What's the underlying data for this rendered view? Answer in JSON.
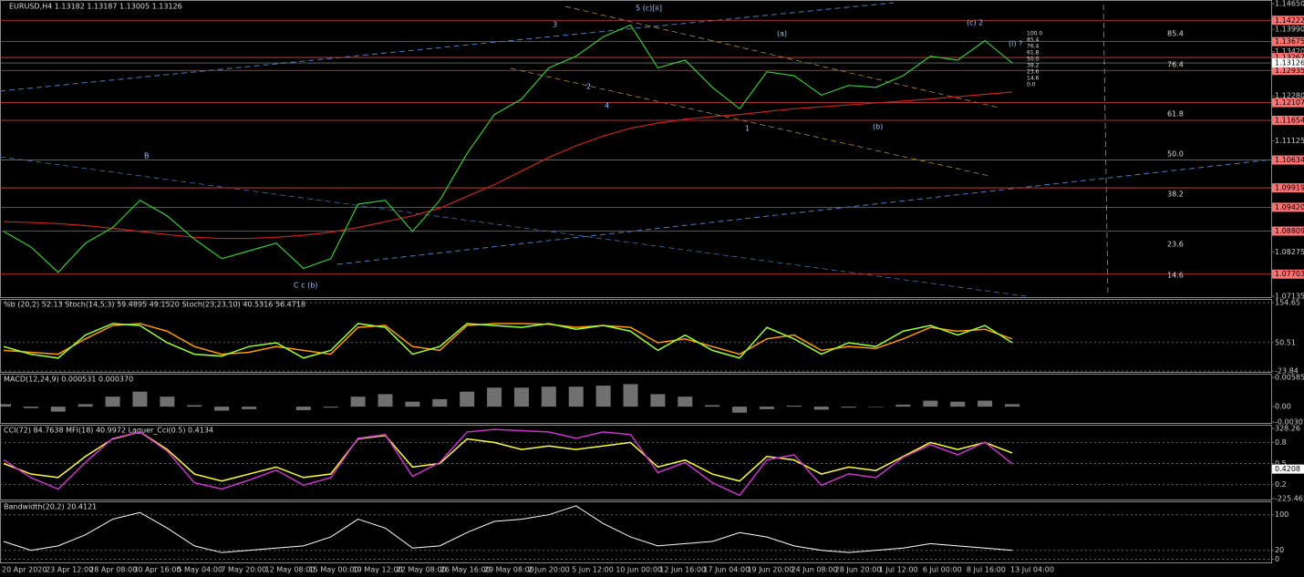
{
  "header": "EURUSD,H4  1.13182 1.13187 1.13005 1.13126",
  "main": {
    "ylim": [
      1.07135,
      1.1465
    ],
    "yticks": [
      {
        "value": 1.1465,
        "label": "1.14650"
      },
      {
        "value": 1.1399,
        "label": "1.13990"
      },
      {
        "value": 1.1342,
        "label": "1.13420"
      },
      {
        "value": 1.1228,
        "label": "1.12280"
      },
      {
        "value": 1.11125,
        "label": "1.11125"
      },
      {
        "value": 1.08275,
        "label": "1.08275"
      },
      {
        "value": 1.07135,
        "label": "1.07135"
      }
    ],
    "levels": [
      {
        "value": 1.14222,
        "label": "1.14222"
      },
      {
        "value": 1.13675,
        "label": "1.13675"
      },
      {
        "value": 1.13267,
        "label": "1.13267"
      },
      {
        "value": 1.12935,
        "label": "1.12935"
      },
      {
        "value": 1.12107,
        "label": "1.12107"
      },
      {
        "value": 1.11654,
        "label": "1.11654"
      },
      {
        "value": 1.10634,
        "label": "1.10634"
      },
      {
        "value": 1.09919,
        "label": "1.09919"
      },
      {
        "value": 1.0942,
        "label": "1.09420"
      },
      {
        "value": 1.08809,
        "label": "1.08809"
      },
      {
        "value": 1.07703,
        "label": "1.07703"
      }
    ],
    "current": {
      "value": 1.13126,
      "label": "1.13126"
    },
    "price": {
      "color": "#33cc33",
      "values": [
        1.088,
        1.084,
        1.0775,
        1.085,
        1.089,
        1.096,
        1.092,
        1.086,
        1.081,
        1.083,
        1.085,
        1.0785,
        1.081,
        1.095,
        1.096,
        1.088,
        1.096,
        1.108,
        1.118,
        1.122,
        1.13,
        1.133,
        1.138,
        1.141,
        1.13,
        1.132,
        1.125,
        1.1195,
        1.129,
        1.128,
        1.123,
        1.1255,
        1.125,
        1.128,
        1.133,
        1.132,
        1.137,
        1.13126
      ]
    },
    "ma": {
      "color": "#cc2222",
      "values": [
        1.0905,
        1.0903,
        1.09,
        1.0895,
        1.0888,
        1.088,
        1.0872,
        1.0865,
        1.0862,
        1.0862,
        1.0865,
        1.087,
        1.0878,
        1.089,
        1.0905,
        1.092,
        1.094,
        1.097,
        1.1,
        1.1035,
        1.107,
        1.11,
        1.1125,
        1.1145,
        1.1158,
        1.1168,
        1.1175,
        1.118,
        1.1188,
        1.1195,
        1.12,
        1.1205,
        1.121,
        1.1215,
        1.122,
        1.1226,
        1.1232,
        1.1238
      ]
    },
    "fib_small": [
      "100.0",
      "85.4",
      "76.4",
      "61.8",
      "50.0",
      "38.2",
      "23.6",
      "14.6",
      "0.0"
    ],
    "fib_big": [
      "85.4",
      "76.4",
      "61.8",
      "50.0",
      "38.2",
      "23.6",
      "14.6"
    ],
    "waves": [
      "5 (c)[ii]",
      "3",
      "4",
      "B",
      "C c (b)",
      "(a)",
      "(b)",
      "(c) 2",
      "(i) ?",
      "1",
      "2"
    ]
  },
  "stoch": {
    "header": "%b (20,2) 52.13  Stoch(14,5,3) 59.4895 49.1520  Stoch(23,23,10) 40.5316 56.4718",
    "ylim": [
      -23.84,
      154.65
    ],
    "yticks": [
      154.65,
      50.51,
      -23.84
    ],
    "series": [
      {
        "color": "#ff9900",
        "values": [
          30,
          25,
          20,
          60,
          95,
          100,
          80,
          40,
          20,
          25,
          40,
          30,
          20,
          90,
          95,
          40,
          30,
          95,
          100,
          100,
          98,
          90,
          95,
          90,
          50,
          60,
          40,
          20,
          60,
          70,
          30,
          40,
          35,
          60,
          90,
          80,
          85,
          60
        ]
      },
      {
        "color": "#99ff33",
        "values": [
          40,
          20,
          10,
          70,
          100,
          95,
          50,
          20,
          15,
          40,
          50,
          10,
          30,
          100,
          90,
          20,
          40,
          100,
          95,
          90,
          100,
          85,
          95,
          80,
          30,
          70,
          30,
          10,
          90,
          60,
          20,
          50,
          40,
          80,
          95,
          70,
          95,
          50
        ]
      }
    ]
  },
  "macd": {
    "header": "MACD(12,24,9) 0.000531 0.000370",
    "ylim": [
      -0.003074,
      0.005853
    ],
    "yticks": [
      0.005853,
      {
        "value": 0,
        "label": "0.00"
      },
      -0.003074
    ],
    "values": [
      0.0005,
      -0.0003,
      -0.001,
      0.0005,
      0.002,
      0.003,
      0.002,
      0.0003,
      -0.0008,
      -0.0005,
      0,
      -0.0007,
      -0.0002,
      0.002,
      0.0025,
      0.001,
      0.0015,
      0.003,
      0.0038,
      0.0038,
      0.004,
      0.004,
      0.0042,
      0.0045,
      0.0025,
      0.002,
      0.0003,
      -0.0012,
      -0.0005,
      0.0002,
      -0.0006,
      -0.0002,
      -0.0001,
      0.0004,
      0.0012,
      0.001,
      0.0012,
      0.0005
    ]
  },
  "cci": {
    "header": "CCI(72) 84.7638  MFI(18) 40.9972  Laguer_Cci(0.5) 0.4134",
    "ylim": [
      -225.4621,
      328.26
    ],
    "yticks": [
      328.26,
      -225.4621
    ],
    "y2lim": [
      0,
      1
    ],
    "y2ticks": [
      0.8,
      0.5,
      0.2
    ],
    "y2current": {
      "value": 0.4208,
      "label": "0.4208"
    },
    "series": [
      {
        "color": "#ffff33",
        "axis": "y2",
        "values": [
          0.5,
          0.35,
          0.3,
          0.6,
          0.85,
          0.95,
          0.7,
          0.35,
          0.25,
          0.35,
          0.45,
          0.3,
          0.35,
          0.85,
          0.9,
          0.45,
          0.5,
          0.85,
          0.8,
          0.7,
          0.75,
          0.7,
          0.75,
          0.8,
          0.45,
          0.55,
          0.35,
          0.25,
          0.6,
          0.55,
          0.35,
          0.45,
          0.4,
          0.6,
          0.8,
          0.7,
          0.8,
          0.65
        ]
      },
      {
        "color": "#cc33cc",
        "values": [
          80,
          -60,
          -150,
          60,
          250,
          300,
          150,
          -100,
          -150,
          -80,
          0,
          -120,
          -60,
          250,
          280,
          -50,
          60,
          300,
          320,
          310,
          300,
          250,
          300,
          280,
          -20,
          60,
          -100,
          -200,
          80,
          120,
          -120,
          -30,
          -60,
          100,
          200,
          120,
          220,
          50
        ]
      }
    ]
  },
  "bandwidth": {
    "header": "Bandwidth(20,2) 20.4121",
    "ylim": [
      0,
      126
    ],
    "yticks": [
      100,
      20,
      0
    ],
    "color": "#ffffff",
    "values": [
      40,
      20,
      30,
      55,
      90,
      105,
      70,
      30,
      15,
      20,
      25,
      30,
      50,
      90,
      70,
      25,
      30,
      60,
      85,
      90,
      100,
      120,
      80,
      50,
      30,
      35,
      40,
      60,
      50,
      30,
      20,
      15,
      20,
      25,
      35,
      30,
      25,
      20
    ]
  },
  "dates": [
    "20 Apr 2020",
    "23 Apr 12:00",
    "28 Apr 08:00",
    "30 Apr 16:00",
    "5 May 04:00",
    "7 May 20:00",
    "12 May 08:00",
    "15 May 00:00",
    "19 May 12:00",
    "22 May 08:00",
    "26 May 16:00",
    "29 May 08:00",
    "2 Jun 20:00",
    "5 Jun 12:00",
    "10 Jun 00:00",
    "12 Jun 16:00",
    "17 Jun 04:00",
    "19 Jun 20:00",
    "24 Jun 08:00",
    "28 Jun 20:00",
    "1 Jul 12:00",
    "6 Jul 00:00",
    "8 Jul 16:00",
    "13 Jul 04:00"
  ]
}
